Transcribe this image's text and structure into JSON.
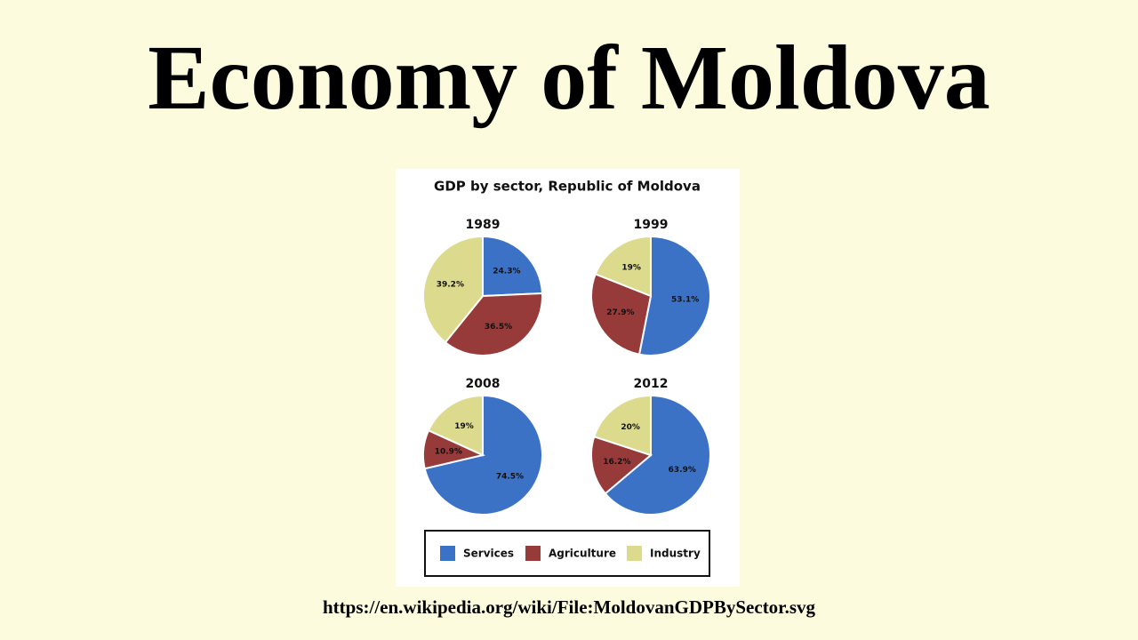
{
  "page": {
    "title": "Economy of Moldova",
    "url": "https://en.wikipedia.org/wiki/File:MoldovanGDPBySector.svg"
  },
  "figure_title": "GDP by sector, Republic of Moldova",
  "chart_data": [
    {
      "type": "pie",
      "title": "1989",
      "categories": [
        "Services",
        "Agriculture",
        "Industry"
      ],
      "values": [
        24.3,
        36.5,
        39.2
      ],
      "value_labels": [
        "24.3%",
        "36.5%",
        "39.2%"
      ],
      "colors": [
        "#3b72c6",
        "#963a3a",
        "#dcdb8d"
      ]
    },
    {
      "type": "pie",
      "title": "1999",
      "categories": [
        "Services",
        "Agriculture",
        "Industry"
      ],
      "values": [
        53.1,
        27.9,
        19
      ],
      "value_labels": [
        "53.1%",
        "27.9%",
        "19%"
      ],
      "colors": [
        "#3b72c6",
        "#963a3a",
        "#dcdb8d"
      ]
    },
    {
      "type": "pie",
      "title": "2008",
      "categories": [
        "Services",
        "Agriculture",
        "Industry"
      ],
      "values": [
        74.5,
        10.9,
        19
      ],
      "value_labels": [
        "74.5%",
        "10.9%",
        "19%"
      ],
      "colors": [
        "#3b72c6",
        "#963a3a",
        "#dcdb8d"
      ]
    },
    {
      "type": "pie",
      "title": "2012",
      "categories": [
        "Services",
        "Agriculture",
        "Industry"
      ],
      "values": [
        63.9,
        16.2,
        20
      ],
      "value_labels": [
        "63.9%",
        "16.2%",
        "20%"
      ],
      "colors": [
        "#3b72c6",
        "#963a3a",
        "#dcdb8d"
      ]
    }
  ]
}
